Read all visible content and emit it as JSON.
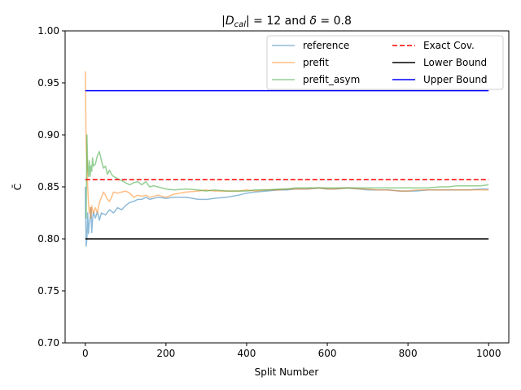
{
  "chart_data": {
    "type": "line",
    "title": "|D_cal| = 12 and δ = 0.8",
    "title_parts": [
      "|",
      "D",
      "cal",
      "| = 12 and ",
      "δ",
      " = 0.8"
    ],
    "xlabel": "Split Number",
    "ylabel": "C̄",
    "xlim": [
      -50,
      1050
    ],
    "ylim": [
      0.7,
      1.0
    ],
    "xticks": [
      0,
      200,
      400,
      600,
      800,
      1000
    ],
    "xtick_labels": [
      "0",
      "200",
      "400",
      "600",
      "800",
      "1000"
    ],
    "yticks": [
      0.7,
      0.75,
      0.8,
      0.85,
      0.9,
      0.95,
      1.0
    ],
    "ytick_labels": [
      "0.70",
      "0.75",
      "0.80",
      "0.85",
      "0.90",
      "0.95",
      "1.00"
    ],
    "grid": false,
    "legend_position": "top-right",
    "legend_columns": 2,
    "series": [
      {
        "name": "reference",
        "color": "#1f77b4",
        "opacity": 0.5,
        "style": "solid",
        "x": [
          0,
          2,
          4,
          6,
          8,
          10,
          12,
          14,
          16,
          18,
          20,
          25,
          30,
          35,
          40,
          50,
          60,
          70,
          80,
          90,
          100,
          110,
          120,
          130,
          140,
          150,
          160,
          180,
          200,
          220,
          250,
          280,
          300,
          320,
          350,
          380,
          400,
          420,
          450,
          480,
          500,
          520,
          550,
          580,
          600,
          620,
          650,
          680,
          700,
          720,
          750,
          780,
          800,
          820,
          850,
          880,
          900,
          920,
          950,
          980,
          1000
        ],
        "y": [
          0.85,
          0.793,
          0.8,
          0.825,
          0.805,
          0.815,
          0.82,
          0.83,
          0.806,
          0.818,
          0.826,
          0.82,
          0.826,
          0.818,
          0.825,
          0.823,
          0.828,
          0.825,
          0.83,
          0.828,
          0.832,
          0.835,
          0.836,
          0.838,
          0.838,
          0.84,
          0.838,
          0.84,
          0.839,
          0.84,
          0.84,
          0.838,
          0.838,
          0.839,
          0.84,
          0.842,
          0.844,
          0.845,
          0.846,
          0.847,
          0.847,
          0.848,
          0.848,
          0.849,
          0.848,
          0.848,
          0.849,
          0.848,
          0.847,
          0.847,
          0.847,
          0.846,
          0.846,
          0.846,
          0.847,
          0.847,
          0.847,
          0.847,
          0.847,
          0.848,
          0.848
        ]
      },
      {
        "name": "prefit",
        "color": "#ff7f0e",
        "opacity": 0.5,
        "style": "solid",
        "x": [
          0,
          2,
          4,
          6,
          8,
          10,
          12,
          14,
          16,
          18,
          20,
          25,
          30,
          35,
          40,
          45,
          50,
          55,
          60,
          65,
          70,
          80,
          90,
          100,
          110,
          120,
          130,
          140,
          150,
          160,
          180,
          200,
          220,
          250,
          280,
          300,
          320,
          350,
          380,
          400,
          420,
          450,
          480,
          500,
          520,
          550,
          580,
          600,
          620,
          650,
          680,
          700,
          720,
          750,
          780,
          800,
          820,
          850,
          880,
          900,
          920,
          950,
          980,
          1000
        ],
        "y": [
          0.961,
          0.89,
          0.875,
          0.85,
          0.835,
          0.825,
          0.83,
          0.82,
          0.832,
          0.828,
          0.825,
          0.83,
          0.825,
          0.835,
          0.84,
          0.845,
          0.842,
          0.838,
          0.836,
          0.84,
          0.845,
          0.844,
          0.845,
          0.846,
          0.844,
          0.84,
          0.842,
          0.841,
          0.842,
          0.84,
          0.842,
          0.84,
          0.843,
          0.845,
          0.846,
          0.847,
          0.846,
          0.846,
          0.846,
          0.847,
          0.846,
          0.847,
          0.847,
          0.848,
          0.848,
          0.848,
          0.849,
          0.848,
          0.848,
          0.849,
          0.848,
          0.848,
          0.847,
          0.847,
          0.846,
          0.846,
          0.847,
          0.847,
          0.847,
          0.847,
          0.847,
          0.847,
          0.847,
          0.847
        ]
      },
      {
        "name": "prefit_asym",
        "color": "#2ca02c",
        "opacity": 0.5,
        "style": "solid",
        "x": [
          0,
          2,
          4,
          6,
          8,
          10,
          12,
          14,
          16,
          18,
          20,
          25,
          30,
          35,
          40,
          45,
          50,
          55,
          60,
          65,
          70,
          80,
          90,
          100,
          110,
          120,
          130,
          140,
          150,
          160,
          170,
          180,
          200,
          220,
          250,
          280,
          300,
          320,
          350,
          380,
          400,
          420,
          450,
          480,
          500,
          520,
          550,
          580,
          600,
          620,
          650,
          680,
          700,
          720,
          750,
          780,
          800,
          820,
          850,
          880,
          900,
          920,
          950,
          980,
          1000
        ],
        "y": [
          0.82,
          0.82,
          0.9,
          0.87,
          0.86,
          0.875,
          0.86,
          0.87,
          0.865,
          0.878,
          0.87,
          0.872,
          0.88,
          0.884,
          0.875,
          0.868,
          0.87,
          0.862,
          0.866,
          0.862,
          0.86,
          0.858,
          0.856,
          0.854,
          0.852,
          0.854,
          0.855,
          0.852,
          0.855,
          0.85,
          0.851,
          0.85,
          0.848,
          0.847,
          0.848,
          0.847,
          0.846,
          0.847,
          0.846,
          0.846,
          0.846,
          0.847,
          0.847,
          0.848,
          0.848,
          0.849,
          0.849,
          0.849,
          0.849,
          0.849,
          0.849,
          0.849,
          0.849,
          0.849,
          0.849,
          0.849,
          0.849,
          0.849,
          0.849,
          0.85,
          0.85,
          0.851,
          0.851,
          0.851,
          0.852
        ]
      },
      {
        "name": "Exact Cov.",
        "color": "#ff0000",
        "opacity": 1,
        "style": "dashed",
        "x": [
          0,
          1000
        ],
        "y": [
          0.857,
          0.857
        ]
      },
      {
        "name": "Lower Bound",
        "color": "#000000",
        "opacity": 1,
        "style": "solid",
        "x": [
          0,
          1000
        ],
        "y": [
          0.8,
          0.8
        ]
      },
      {
        "name": "Upper Bound",
        "color": "#0000ff",
        "opacity": 1,
        "style": "solid",
        "x": [
          0,
          1000
        ],
        "y": [
          0.9425,
          0.9425
        ]
      }
    ]
  }
}
